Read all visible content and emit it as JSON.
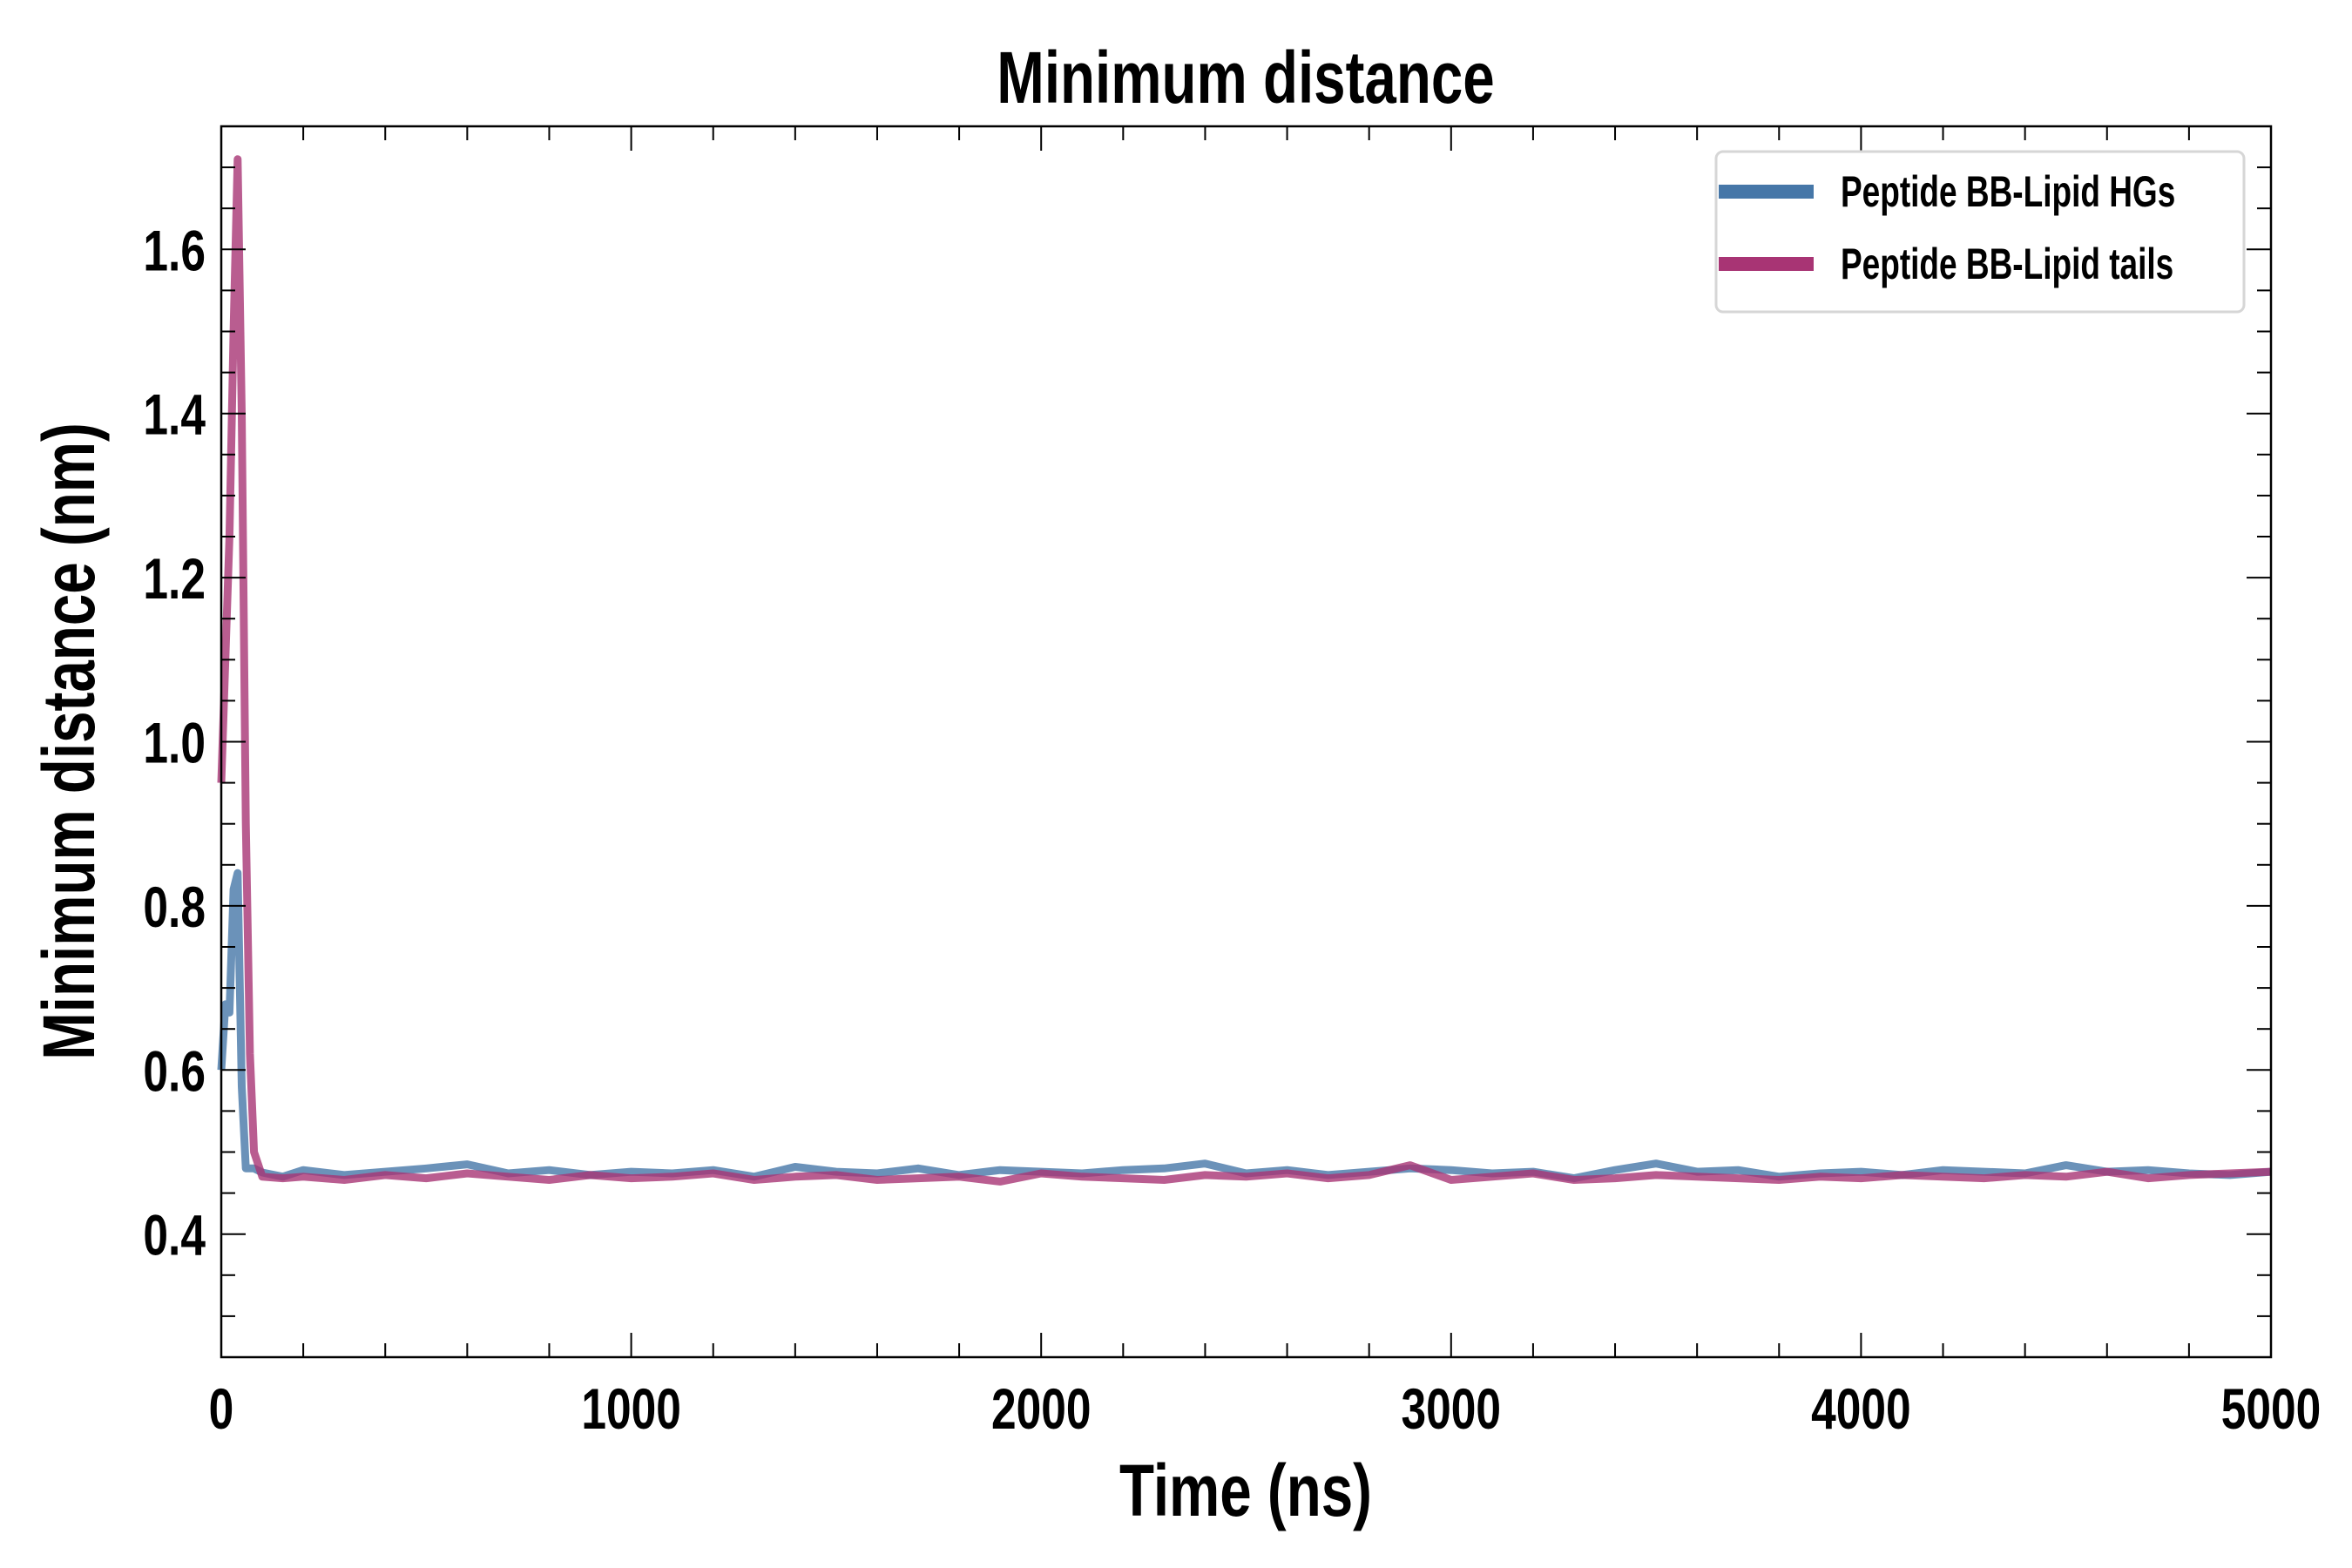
{
  "chart_data": {
    "type": "line",
    "title": "Minimum distance",
    "xlabel": "Time (ns)",
    "ylabel": "Minimum distance (nm)",
    "xlim": [
      0,
      5000
    ],
    "ylim": [
      0.25,
      1.75
    ],
    "xticks": [
      0,
      1000,
      2000,
      3000,
      4000,
      5000
    ],
    "xtick_labels": [
      "0",
      "1000",
      "2000",
      "3000",
      "4000",
      "5000"
    ],
    "yticks": [
      0.4,
      0.6,
      0.8,
      1.0,
      1.2,
      1.4,
      1.6
    ],
    "ytick_labels": [
      "0.4",
      "0.6",
      "0.8",
      "1.0",
      "1.2",
      "1.4",
      "1.6"
    ],
    "grid": false,
    "legend_position": "top-right",
    "series": [
      {
        "name": "Peptide BB-Lipid HGs",
        "color": "#4677a8",
        "x": [
          0,
          10,
          20,
          30,
          40,
          50,
          60,
          70,
          80,
          100,
          150,
          200,
          300,
          400,
          500,
          600,
          700,
          800,
          900,
          1000,
          1100,
          1200,
          1300,
          1400,
          1500,
          1600,
          1700,
          1800,
          1900,
          2000,
          2100,
          2200,
          2300,
          2400,
          2500,
          2600,
          2700,
          2800,
          2900,
          3000,
          3100,
          3200,
          3300,
          3400,
          3500,
          3600,
          3700,
          3800,
          3900,
          4000,
          4100,
          4200,
          4300,
          4400,
          4500,
          4600,
          4700,
          4800,
          4900,
          5000
        ],
        "y": [
          0.6,
          0.68,
          0.67,
          0.82,
          0.84,
          0.58,
          0.48,
          0.48,
          0.48,
          0.475,
          0.47,
          0.478,
          0.472,
          0.476,
          0.48,
          0.485,
          0.474,
          0.478,
          0.472,
          0.476,
          0.474,
          0.478,
          0.47,
          0.482,
          0.476,
          0.474,
          0.48,
          0.472,
          0.478,
          0.476,
          0.474,
          0.478,
          0.48,
          0.486,
          0.474,
          0.478,
          0.472,
          0.476,
          0.48,
          0.478,
          0.474,
          0.476,
          0.468,
          0.478,
          0.486,
          0.476,
          0.478,
          0.47,
          0.474,
          0.476,
          0.472,
          0.478,
          0.476,
          0.474,
          0.484,
          0.476,
          0.478,
          0.474,
          0.472,
          0.476
        ]
      },
      {
        "name": "Peptide BB-Lipid tails",
        "color": "#a83474",
        "x": [
          0,
          10,
          20,
          30,
          40,
          50,
          60,
          70,
          80,
          100,
          150,
          200,
          300,
          400,
          500,
          600,
          700,
          800,
          900,
          1000,
          1100,
          1200,
          1300,
          1400,
          1500,
          1600,
          1700,
          1800,
          1900,
          2000,
          2100,
          2200,
          2300,
          2400,
          2500,
          2600,
          2700,
          2800,
          2900,
          3000,
          3100,
          3200,
          3300,
          3400,
          3500,
          3600,
          3700,
          3800,
          3900,
          4000,
          4100,
          4200,
          4300,
          4400,
          4500,
          4600,
          4700,
          4800,
          4900,
          5000
        ],
        "y": [
          0.95,
          1.1,
          1.25,
          1.5,
          1.71,
          1.4,
          0.9,
          0.62,
          0.5,
          0.47,
          0.468,
          0.47,
          0.466,
          0.472,
          0.468,
          0.474,
          0.47,
          0.466,
          0.472,
          0.468,
          0.47,
          0.474,
          0.466,
          0.47,
          0.472,
          0.466,
          0.468,
          0.47,
          0.464,
          0.474,
          0.47,
          0.468,
          0.466,
          0.472,
          0.47,
          0.474,
          0.468,
          0.472,
          0.484,
          0.466,
          0.47,
          0.474,
          0.466,
          0.468,
          0.472,
          0.47,
          0.468,
          0.466,
          0.47,
          0.468,
          0.472,
          0.47,
          0.468,
          0.472,
          0.47,
          0.476,
          0.468,
          0.472,
          0.474,
          0.476
        ]
      }
    ]
  }
}
